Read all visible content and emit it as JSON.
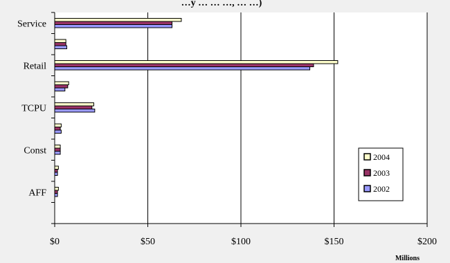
{
  "chart_data": {
    "type": "bar",
    "orientation": "horizontal",
    "title_partial": "…y … … …, … …)",
    "categories": [
      "Service",
      "",
      "Retail",
      "",
      "TCPU",
      "",
      "Const",
      "",
      "AFF",
      ""
    ],
    "category_labels_visible": [
      "Service",
      "Retail",
      "TCPU",
      "Const",
      "AFF"
    ],
    "series": [
      {
        "name": "2004",
        "color": "#ffffcc",
        "values": [
          68,
          6,
          152,
          7.5,
          21,
          3.5,
          3,
          2,
          2,
          0
        ]
      },
      {
        "name": "2003",
        "color": "#993366",
        "values": [
          63,
          6,
          139,
          7,
          20,
          3,
          3,
          1.5,
          1.5,
          0
        ]
      },
      {
        "name": "2002",
        "color": "#9999ff",
        "values": [
          63,
          6.5,
          137,
          5.5,
          21.5,
          3.5,
          3,
          1.5,
          1.5,
          0
        ]
      }
    ],
    "x_ticks": [
      "$0",
      "$50",
      "$100",
      "$150",
      "$200"
    ],
    "x_tick_values": [
      0,
      50,
      100,
      150,
      200
    ],
    "xlim": [
      0,
      200
    ],
    "x_unit_label": "Millions",
    "grid": "vertical major gridlines",
    "legend_placement": "right"
  }
}
